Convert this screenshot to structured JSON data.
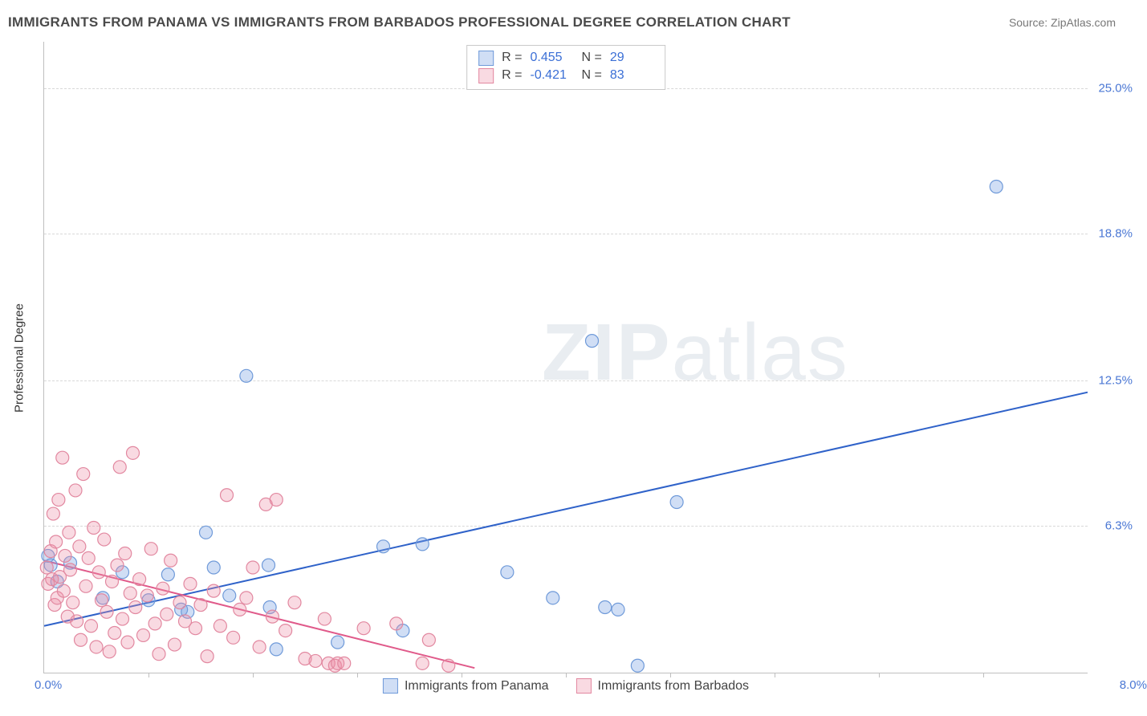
{
  "title": "IMMIGRANTS FROM PANAMA VS IMMIGRANTS FROM BARBADOS PROFESSIONAL DEGREE CORRELATION CHART",
  "source_label": "Source: ZipAtlas.com",
  "y_axis_title": "Professional Degree",
  "watermark_bold": "ZIP",
  "watermark_rest": "atlas",
  "x_origin_label": "0.0%",
  "x_max_label": "8.0%",
  "chart": {
    "type": "scatter",
    "background_color": "#ffffff",
    "grid_color": "#d8d8d8",
    "axis_color": "#bfbfbf",
    "xlim": [
      0,
      8.0
    ],
    "ylim": [
      0,
      27.0
    ],
    "y_ticks": [
      6.3,
      12.5,
      18.8,
      25.0
    ],
    "y_tick_labels": [
      "6.3%",
      "12.5%",
      "18.8%",
      "25.0%"
    ],
    "x_minor_ticks": [
      0.8,
      1.6,
      2.4,
      3.2,
      4.0,
      4.8,
      5.6,
      6.4,
      7.2
    ],
    "marker_radius": 8,
    "marker_stroke_width": 1.2,
    "trend_line_width": 2,
    "series": [
      {
        "id": "panama",
        "label": "Immigrants from Panama",
        "fill": "rgba(120,160,225,0.35)",
        "stroke": "#6f9ad9",
        "trend_color": "#2f62c9",
        "r_value": "0.455",
        "n_value": "29",
        "trend": {
          "x1": 0.0,
          "y1": 2.0,
          "x2": 8.0,
          "y2": 12.0
        },
        "points": [
          [
            0.03,
            5.0
          ],
          [
            0.05,
            4.6
          ],
          [
            0.1,
            3.9
          ],
          [
            0.2,
            4.7
          ],
          [
            0.45,
            3.2
          ],
          [
            0.6,
            4.3
          ],
          [
            0.8,
            3.1
          ],
          [
            0.95,
            4.2
          ],
          [
            1.05,
            2.7
          ],
          [
            1.1,
            2.6
          ],
          [
            1.24,
            6.0
          ],
          [
            1.3,
            4.5
          ],
          [
            1.42,
            3.3
          ],
          [
            1.55,
            12.7
          ],
          [
            1.72,
            4.6
          ],
          [
            1.73,
            2.8
          ],
          [
            1.78,
            1.0
          ],
          [
            2.25,
            1.3
          ],
          [
            2.6,
            5.4
          ],
          [
            2.75,
            1.8
          ],
          [
            2.9,
            5.5
          ],
          [
            3.55,
            4.3
          ],
          [
            3.9,
            3.2
          ],
          [
            4.2,
            14.2
          ],
          [
            4.3,
            2.8
          ],
          [
            4.4,
            2.7
          ],
          [
            4.55,
            0.3
          ],
          [
            4.85,
            7.3
          ],
          [
            7.3,
            20.8
          ]
        ]
      },
      {
        "id": "barbados",
        "label": "Immigrants from Barbados",
        "fill": "rgba(235,140,165,0.32)",
        "stroke": "#e288a0",
        "trend_color": "#e05a8a",
        "r_value": "-0.421",
        "n_value": "83",
        "trend": {
          "x1": 0.0,
          "y1": 4.8,
          "x2": 3.3,
          "y2": 0.2
        },
        "points": [
          [
            0.02,
            4.5
          ],
          [
            0.03,
            3.8
          ],
          [
            0.05,
            5.2
          ],
          [
            0.06,
            4.0
          ],
          [
            0.07,
            6.8
          ],
          [
            0.08,
            2.9
          ],
          [
            0.09,
            5.6
          ],
          [
            0.1,
            3.2
          ],
          [
            0.11,
            7.4
          ],
          [
            0.12,
            4.1
          ],
          [
            0.14,
            9.2
          ],
          [
            0.15,
            3.5
          ],
          [
            0.16,
            5.0
          ],
          [
            0.18,
            2.4
          ],
          [
            0.19,
            6.0
          ],
          [
            0.2,
            4.4
          ],
          [
            0.22,
            3.0
          ],
          [
            0.24,
            7.8
          ],
          [
            0.25,
            2.2
          ],
          [
            0.27,
            5.4
          ],
          [
            0.28,
            1.4
          ],
          [
            0.3,
            8.5
          ],
          [
            0.32,
            3.7
          ],
          [
            0.34,
            4.9
          ],
          [
            0.36,
            2.0
          ],
          [
            0.38,
            6.2
          ],
          [
            0.4,
            1.1
          ],
          [
            0.42,
            4.3
          ],
          [
            0.44,
            3.1
          ],
          [
            0.46,
            5.7
          ],
          [
            0.48,
            2.6
          ],
          [
            0.5,
            0.9
          ],
          [
            0.52,
            3.9
          ],
          [
            0.54,
            1.7
          ],
          [
            0.56,
            4.6
          ],
          [
            0.58,
            8.8
          ],
          [
            0.6,
            2.3
          ],
          [
            0.62,
            5.1
          ],
          [
            0.64,
            1.3
          ],
          [
            0.66,
            3.4
          ],
          [
            0.68,
            9.4
          ],
          [
            0.7,
            2.8
          ],
          [
            0.73,
            4.0
          ],
          [
            0.76,
            1.6
          ],
          [
            0.79,
            3.3
          ],
          [
            0.82,
            5.3
          ],
          [
            0.85,
            2.1
          ],
          [
            0.88,
            0.8
          ],
          [
            0.91,
            3.6
          ],
          [
            0.94,
            2.5
          ],
          [
            0.97,
            4.8
          ],
          [
            1.0,
            1.2
          ],
          [
            1.04,
            3.0
          ],
          [
            1.08,
            2.2
          ],
          [
            1.12,
            3.8
          ],
          [
            1.16,
            1.9
          ],
          [
            1.2,
            2.9
          ],
          [
            1.25,
            0.7
          ],
          [
            1.3,
            3.5
          ],
          [
            1.35,
            2.0
          ],
          [
            1.4,
            7.6
          ],
          [
            1.45,
            1.5
          ],
          [
            1.5,
            2.7
          ],
          [
            1.55,
            3.2
          ],
          [
            1.6,
            4.5
          ],
          [
            1.65,
            1.1
          ],
          [
            1.7,
            7.2
          ],
          [
            1.75,
            2.4
          ],
          [
            1.78,
            7.4
          ],
          [
            1.85,
            1.8
          ],
          [
            1.92,
            3.0
          ],
          [
            2.0,
            0.6
          ],
          [
            2.08,
            0.5
          ],
          [
            2.15,
            2.3
          ],
          [
            2.18,
            0.4
          ],
          [
            2.23,
            0.3
          ],
          [
            2.25,
            0.4
          ],
          [
            2.3,
            0.4
          ],
          [
            2.45,
            1.9
          ],
          [
            2.7,
            2.1
          ],
          [
            2.9,
            0.4
          ],
          [
            2.95,
            1.4
          ],
          [
            3.1,
            0.3
          ]
        ]
      }
    ]
  },
  "stats_box": {
    "r_label": "R  =",
    "n_label": "N  ="
  },
  "colors": {
    "blue_text": "#4a77d4",
    "body_text": "#4a4a4a"
  }
}
